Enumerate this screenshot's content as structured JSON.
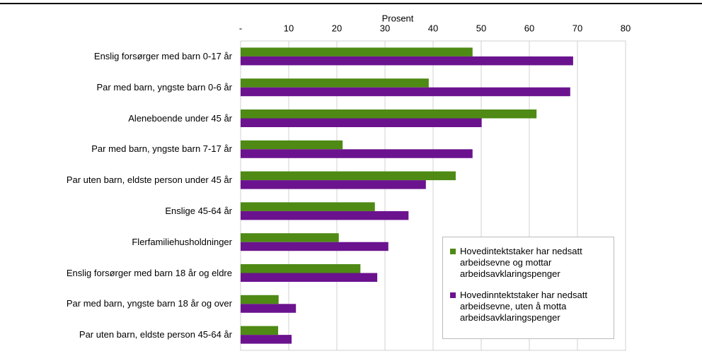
{
  "chart_data": {
    "type": "barh",
    "xlabel": "Prosent",
    "categories": [
      "Enslig forsørger med barn 0-17 år",
      "Par med barn, yngste barn 0-6 år",
      "Aleneboende under 45 år",
      "Par med barn, yngste barn 7-17 år",
      "Par uten barn, eldste person under 45 år",
      "Enslige 45-64 år",
      "Flerfamiliehusholdninger",
      "Enslig forsørger med barn 18 år og eldre",
      "Par med barn, yngste barn 18 år og over",
      "Par uten barn, eldste person 45-64 år"
    ],
    "series": [
      {
        "name": "Hovedintektstaker har nedsatt arbeidsevne og mottar arbeidsavklaringspenger",
        "color": "#4e8a14",
        "values": [
          48.2,
          39.1,
          61.5,
          21.2,
          44.7,
          27.9,
          20.4,
          24.9,
          7.9,
          7.8
        ]
      },
      {
        "name": "Hovedinntektstaker har nedsatt arbeidsevne, uten å motta arbeidsavklaringspenger",
        "color": "#6b138f",
        "values": [
          69.1,
          68.5,
          50.1,
          48.2,
          38.5,
          34.9,
          30.7,
          28.4,
          11.5,
          10.6
        ]
      }
    ],
    "xlim": [
      0,
      80
    ],
    "xticks": [
      {
        "value": 0,
        "label": "-"
      },
      10,
      20,
      30,
      40,
      50,
      60,
      70,
      80
    ],
    "grid": true
  }
}
